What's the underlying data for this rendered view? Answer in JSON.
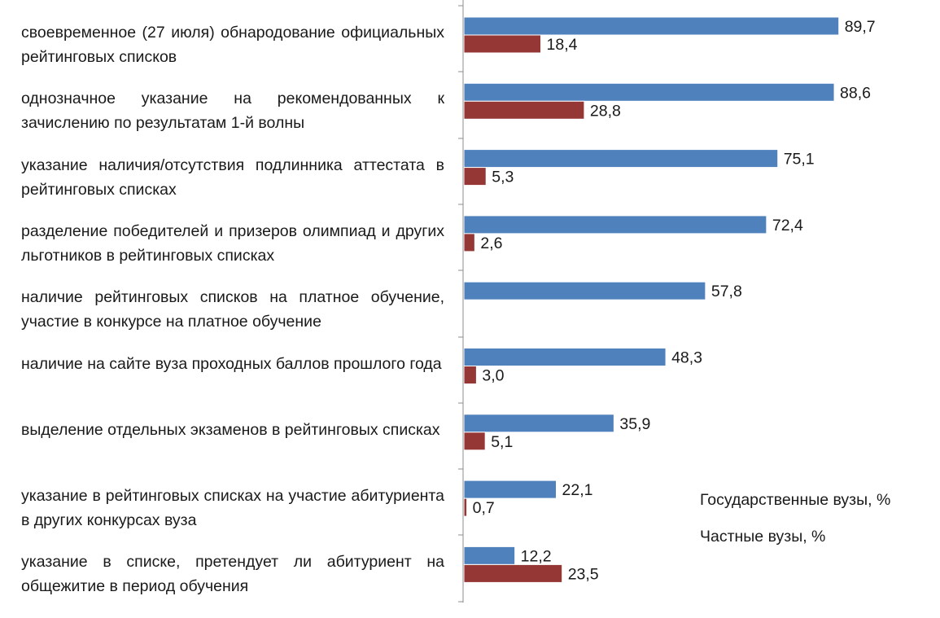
{
  "chart_data": {
    "type": "bar",
    "orientation": "horizontal",
    "categories": [
      "своевременное (27 июля) обнародование официальных рейтинговых списков",
      "однозначное указание на рекомендованных к зачислению по результатам 1-й волны",
      "указание наличия/отсутствия подлинника аттестата в рейтинговых списках",
      "разделение победителей и призеров олимпиад и других льготников в рейтинговых списках",
      "наличие рейтинговых списков на платное обучение, участие в конкурсе на платное обучение",
      "наличие на сайте вуза проходных баллов прошлого года",
      "выделение отдельных экзаменов в рейтинговых списках",
      "указание в рейтинговых списках на участие абитуриента в других конкурсах вуза",
      "указание в списке, претендует ли абитуриент на общежитие в период обучения"
    ],
    "series": [
      {
        "name": "Государственные вузы, %",
        "color": "#4F81BD",
        "values": [
          89.7,
          88.6,
          75.1,
          72.4,
          57.8,
          48.3,
          35.9,
          22.1,
          12.2
        ],
        "labels": [
          "89,7",
          "88,6",
          "75,1",
          "72,4",
          "57,8",
          "48,3",
          "35,9",
          "22,1",
          "12,2"
        ]
      },
      {
        "name": "Частные вузы, %",
        "color": "#953735",
        "values": [
          18.4,
          28.8,
          5.3,
          2.6,
          null,
          3.0,
          5.1,
          0.7,
          23.5
        ],
        "labels": [
          "18,4",
          "28,8",
          "5,3",
          "2,6",
          "",
          "3,0",
          "5,1",
          "0,7",
          "23,5"
        ]
      }
    ],
    "xlim": [
      0,
      100
    ],
    "grid": false,
    "legend_position": "bottom-right",
    "title": "",
    "xlabel": "",
    "ylabel": ""
  }
}
